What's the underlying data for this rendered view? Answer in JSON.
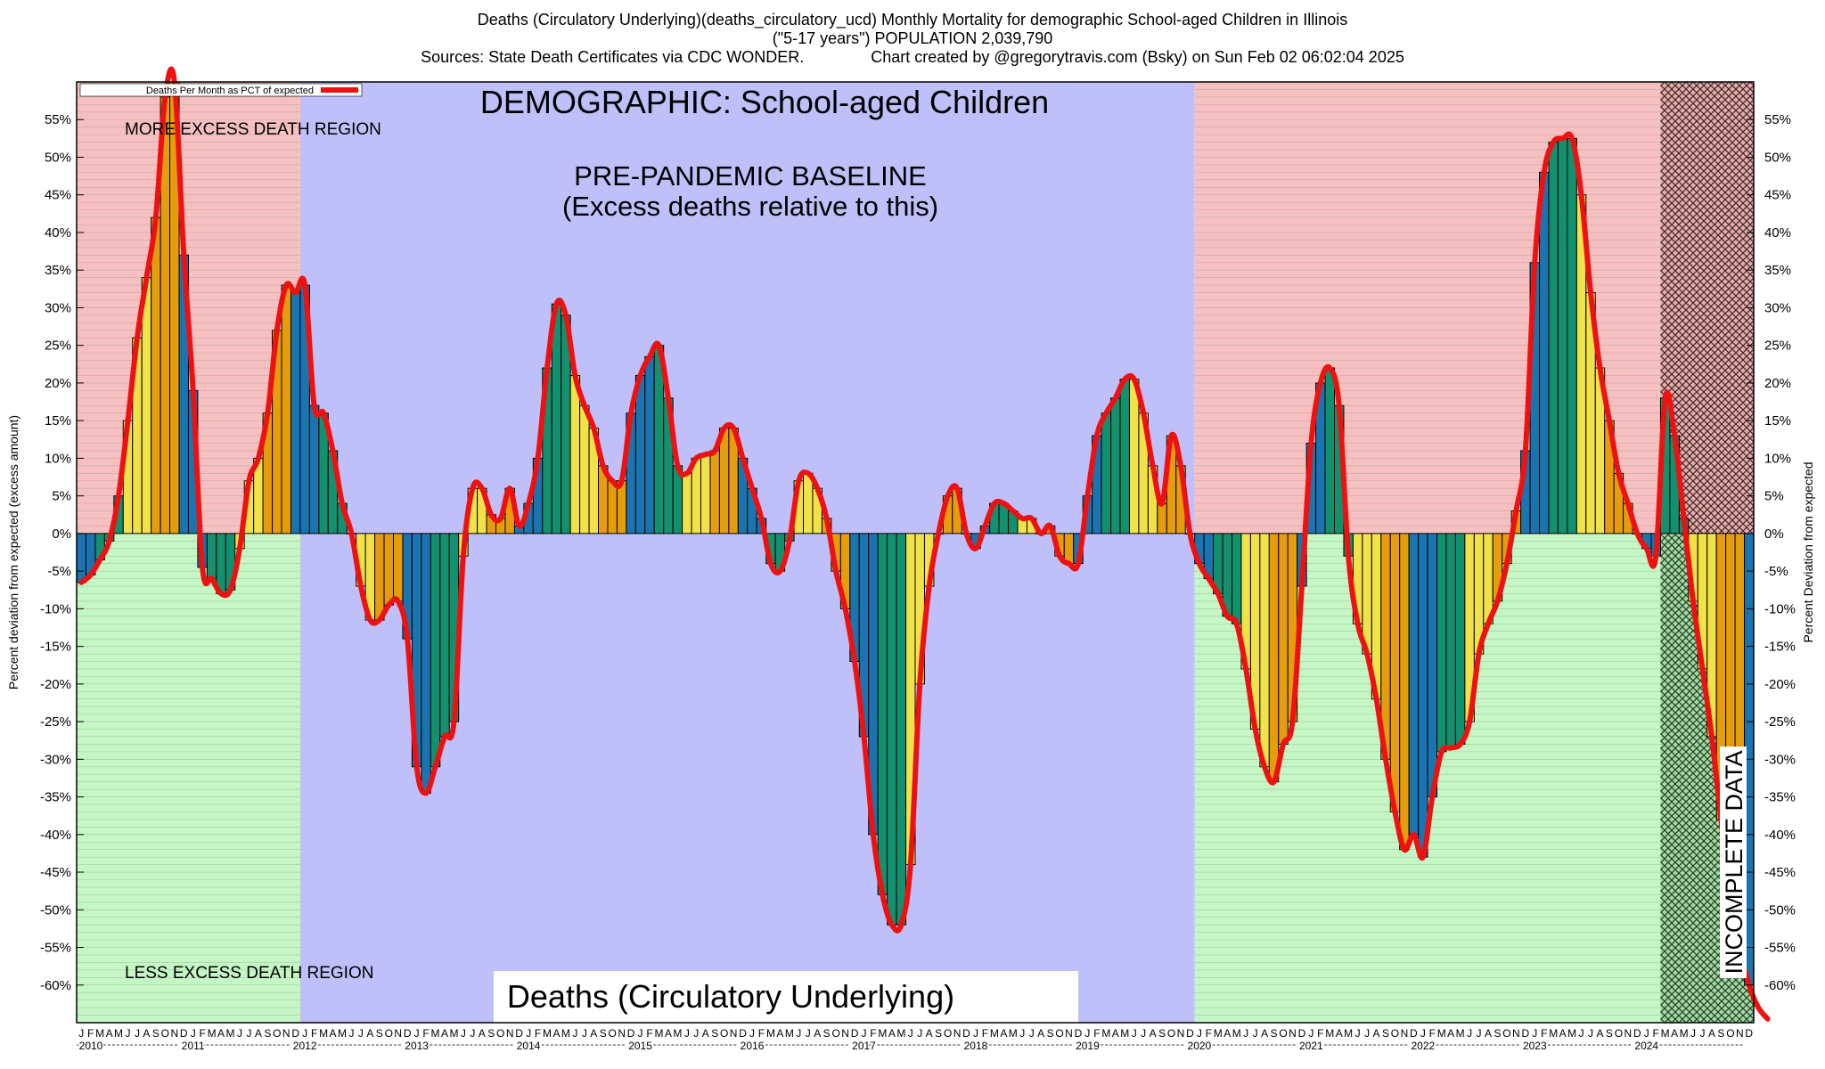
{
  "header": {
    "line1": "Deaths (Circulatory Underlying)(deaths_circulatory_ucd) Monthly Mortality for demographic School-aged Children in Illinois",
    "line2": "(\"5-17 years\") POPULATION 2,039,790",
    "line3": "Sources: State Death Certificates via CDC WONDER.               Chart created by @gregorytravis.com (Bsky) on Sun Feb 02 06:02:04 2025"
  },
  "chart_data": {
    "type": "bar",
    "title": "DEMOGRAPHIC: School-aged Children",
    "subtitle_box": "Deaths (Circulatory Underlying)",
    "ylabel_left": "Percent deviation from expected (excess amount)",
    "ylabel_right": "Percent Deviation from expected",
    "legend": "Deaths Per Month as PCT of expected",
    "ylim": [
      -65,
      60
    ],
    "yticks": [
      55,
      50,
      45,
      40,
      35,
      30,
      25,
      20,
      15,
      10,
      5,
      0,
      -5,
      -10,
      -15,
      -20,
      -25,
      -30,
      -35,
      -40,
      -45,
      -50,
      -55,
      -60
    ],
    "years": [
      "2010",
      "2011",
      "2012",
      "2013",
      "2014",
      "2015",
      "2016",
      "2017",
      "2018",
      "2019",
      "2020",
      "2021",
      "2022",
      "2023",
      "2024"
    ],
    "month_letters": [
      "J",
      "F",
      "M",
      "A",
      "M",
      "J",
      "J",
      "A",
      "S",
      "O",
      "N",
      "D"
    ],
    "season_colors": [
      "#1a74b0",
      "#13906e",
      "#f2e24a",
      "#e59d0d"
    ],
    "line_color": "#ee1111",
    "region_labels": {
      "more": "MORE EXCESS DEATH REGION",
      "less": "LESS EXCESS DEATH REGION",
      "baseline_line1": "PRE-PANDEMIC BASELINE",
      "baseline_line2": "(Excess deaths relative to this)",
      "incomplete": "INCOMPLETE DATA"
    },
    "region_colors": {
      "above": "#f7c0c0",
      "below": "#c4f7c4",
      "baseline": "#bfbff9"
    },
    "values": [
      -6.5,
      -5.5,
      -3.5,
      -1,
      5,
      15,
      26,
      34,
      42,
      58,
      60,
      37,
      19,
      -4.5,
      -6,
      -8,
      -7.5,
      -2,
      7,
      10,
      16,
      27,
      33,
      32,
      33,
      17,
      16,
      11,
      4,
      0,
      -7,
      -11.5,
      -11.5,
      -9.5,
      -9,
      -14,
      -31,
      -34.5,
      -31,
      -27,
      -25,
      -3,
      6,
      6,
      2.5,
      2,
      6,
      1,
      4,
      10,
      22,
      30.5,
      29,
      21,
      17,
      14,
      9,
      7,
      7,
      16,
      21,
      23.5,
      25,
      18,
      9,
      8,
      10,
      10.5,
      11,
      14,
      14,
      10,
      6,
      2,
      -4,
      -5,
      -1,
      7,
      8,
      6,
      2,
      -5,
      -10,
      -17,
      -27,
      -40,
      -48,
      -52,
      -52,
      -44,
      -20,
      -7,
      0,
      5,
      6,
      0,
      -2,
      1,
      4,
      4,
      3,
      2,
      2,
      0,
      1,
      -3,
      -4,
      -4,
      5,
      13,
      16,
      18,
      20.5,
      20.5,
      16,
      9,
      4,
      13,
      9,
      0,
      -4,
      -6,
      -8,
      -11,
      -12,
      -18,
      -26,
      -31,
      -33,
      -28,
      -25,
      -7,
      12,
      20,
      22,
      17,
      -3,
      -12,
      -16,
      -22,
      -30,
      -37,
      -42,
      -40,
      -43,
      -35,
      -29,
      -28.5,
      -28,
      -25,
      -16,
      -12,
      -9,
      -4,
      3,
      11,
      36,
      48,
      52,
      52.5,
      52.5,
      45,
      32,
      22,
      15,
      8,
      4,
      0,
      -2,
      -3,
      18,
      13,
      2,
      -9,
      -18,
      -27,
      -38,
      -48,
      -55,
      -60,
      -63,
      -64.5
    ],
    "incomplete_start_index": 170,
    "baseline_start_index": 24,
    "baseline_end_index": 120
  }
}
